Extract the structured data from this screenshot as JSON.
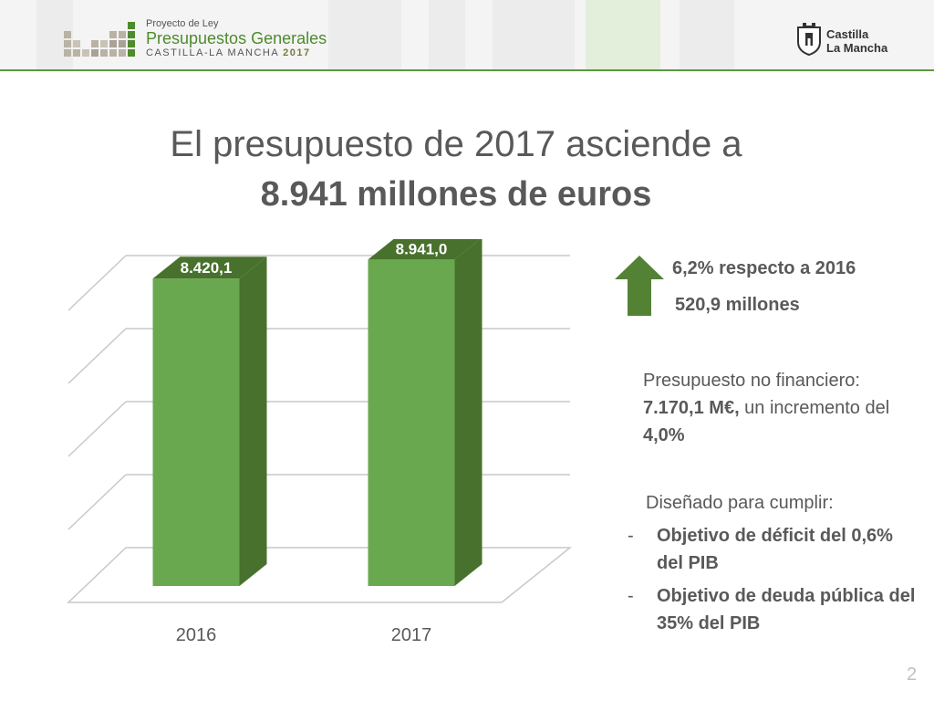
{
  "header": {
    "brand_small": "Proyecto de Ley",
    "brand_main": "Presupuestos Generales",
    "brand_sub": "CASTILLA-LA MANCHA",
    "brand_year": "2017",
    "logo_text_line1": "Castilla",
    "logo_text_line2": "La Mancha",
    "logo_icon": "castle-shield-icon"
  },
  "title": {
    "line1": "El presupuesto de 2017 asciende a",
    "line2": "8.941 millones de euros"
  },
  "chart_data": {
    "type": "bar",
    "categories": [
      "2016",
      "2017"
    ],
    "values": [
      8420.1,
      8941.0
    ],
    "data_labels": [
      "8.420,1",
      "8.941,0"
    ],
    "title": "",
    "xlabel": "",
    "ylabel": "",
    "ylim": [
      0,
      9000
    ],
    "grid": true,
    "bar_color": "#6aa84f",
    "bar_side_color": "#48712d"
  },
  "increase": {
    "icon": "arrow-up-icon",
    "percent_text": "6,2% respecto a 2016",
    "amount_text": "520,9 millones",
    "color": "#548235"
  },
  "non_financial": {
    "prefix": "Presupuesto no financiero: ",
    "amount": "7.170,1 M€,",
    "middle": " un incremento del ",
    "percent": "4,0%"
  },
  "design": {
    "heading": "Diseñado para cumplir:",
    "bullet_marker": "-",
    "items": [
      "Objetivo de déficit del 0,6% del PIB",
      "Objetivo de deuda pública del 35% del PIB"
    ]
  },
  "page_number": "2"
}
